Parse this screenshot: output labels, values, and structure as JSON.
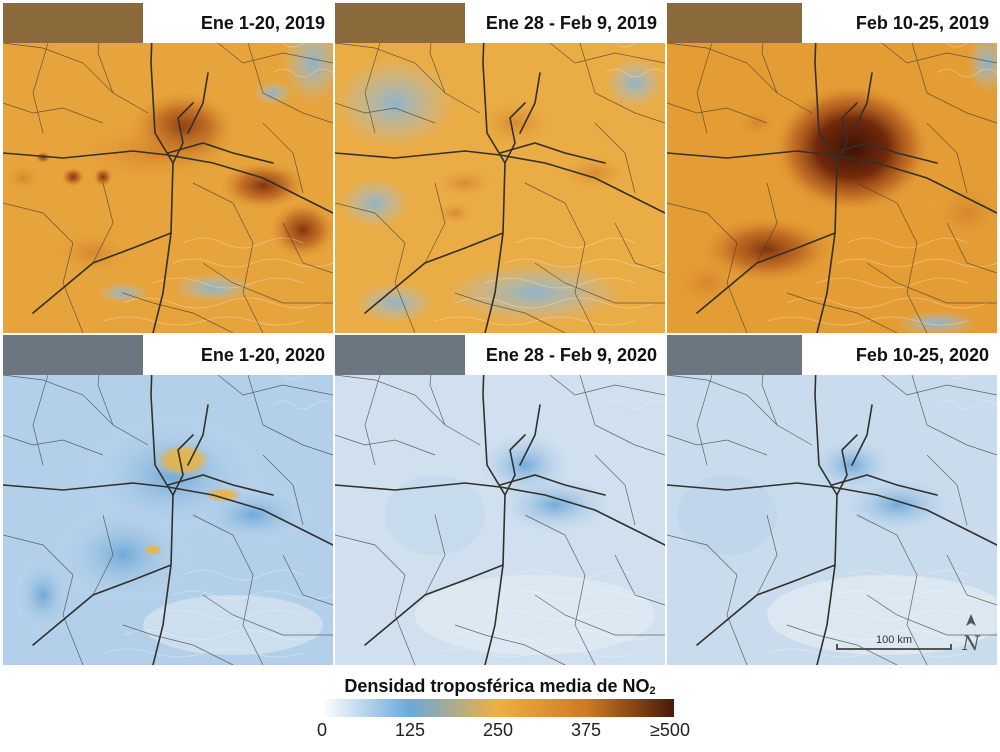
{
  "panels": [
    {
      "label": "Ene 1-20, 2019",
      "year": "2019"
    },
    {
      "label": "Ene 28 - Feb 9, 2019",
      "year": "2019"
    },
    {
      "label": "Feb 10-25, 2019",
      "year": "2019"
    },
    {
      "label": "Ene 1-20, 2020",
      "year": "2020"
    },
    {
      "label": "Ene 28 - Feb 9, 2020",
      "year": "2020"
    },
    {
      "label": "Feb 10-25, 2020",
      "year": "2020"
    }
  ],
  "legend": {
    "title": "Densidad troposférica media de NO",
    "title_subscript": "2",
    "ticks": [
      "0",
      "125",
      "250",
      "375",
      "≥500"
    ],
    "colors": [
      "#ffffff",
      "#5fa3d9",
      "#e9a83b",
      "#b85a17",
      "#4a1a08"
    ]
  },
  "scale_bar": {
    "label": "100 km"
  },
  "north_arrow": {
    "label": "N"
  }
}
